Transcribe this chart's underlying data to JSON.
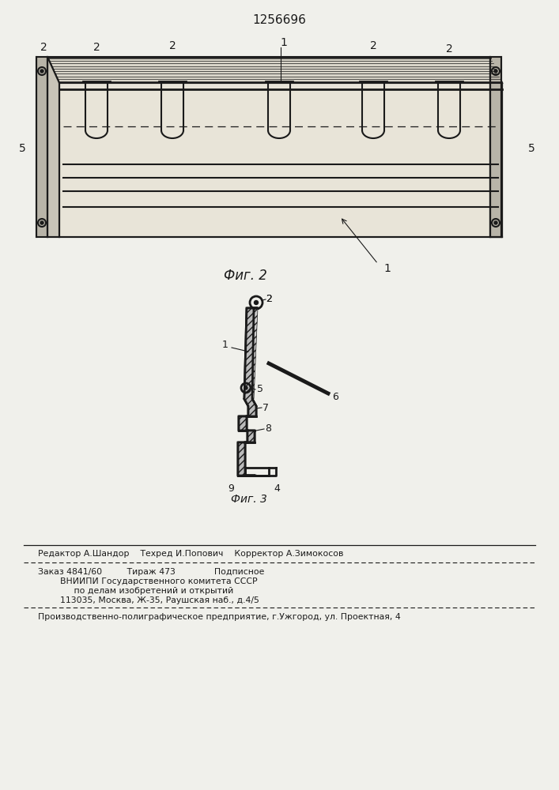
{
  "title": "1256696",
  "bg_color": "#f0f0eb",
  "line_color": "#1a1a1a",
  "fig2_caption": "Фиг. 2",
  "fig3_caption": "Фиг. 3",
  "footer_line1": "Редактор А.Шандор    Техред И.Попович    Корректор А.Зимокосов",
  "footer_line2": "Заказ 4841/60         Тираж 473              Подписное",
  "footer_line3": "        ВНИИПИ Государственного комитета СССР",
  "footer_line4": "             по делам изобретений и открытий",
  "footer_line5": "        113035, Москва, Ж-35, Раушская наб., д.4/5",
  "footer_line6": "Производственно-полиграфическое предприятие, г.Ужгород, ул. Проектная, 4",
  "lw": 1.5
}
